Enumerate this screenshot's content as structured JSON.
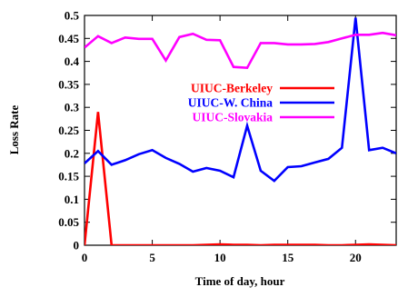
{
  "chart_data": {
    "type": "line",
    "title": "",
    "xlabel": "Time of day, hour",
    "ylabel": "Loss Rate",
    "xlim": [
      0,
      23
    ],
    "ylim": [
      0,
      0.5
    ],
    "xticks": [
      0,
      5,
      10,
      15,
      20
    ],
    "yticks": [
      0,
      0.05,
      0.1,
      0.15,
      0.2,
      0.25,
      0.3,
      0.35,
      0.4,
      0.45,
      0.5
    ],
    "grid": false,
    "legend_position": "upper-right",
    "series": [
      {
        "name": "UIUC-Berkeley",
        "color": "#ff0000",
        "x": [
          0,
          1,
          2,
          3,
          4,
          5,
          6,
          7,
          8,
          9,
          10,
          11,
          12,
          13,
          14,
          15,
          16,
          17,
          18,
          19,
          20,
          21,
          22,
          23
        ],
        "y": [
          0.0,
          0.29,
          0.0,
          0.0,
          0.0,
          0.0,
          0.0,
          0.0,
          0.0,
          0.001,
          0.002,
          0.001,
          0.001,
          0.0,
          0.001,
          0.001,
          0.001,
          0.001,
          0.0,
          0.0,
          0.001,
          0.002,
          0.001,
          0.0
        ]
      },
      {
        "name": "UIUC-W. China",
        "color": "#0000ff",
        "x": [
          0,
          1,
          2,
          3,
          4,
          5,
          6,
          7,
          8,
          9,
          10,
          11,
          12,
          13,
          14,
          15,
          16,
          17,
          18,
          19,
          20,
          21,
          22,
          23
        ],
        "y": [
          0.178,
          0.205,
          0.175,
          0.185,
          0.198,
          0.207,
          0.19,
          0.177,
          0.16,
          0.168,
          0.162,
          0.148,
          0.26,
          0.162,
          0.14,
          0.17,
          0.172,
          0.18,
          0.188,
          0.212,
          0.495,
          0.207,
          0.212,
          0.2
        ]
      },
      {
        "name": "UIUC-Slovakia",
        "color": "#ff00ff",
        "x": [
          0,
          1,
          2,
          3,
          4,
          5,
          6,
          7,
          8,
          9,
          10,
          11,
          12,
          13,
          14,
          15,
          16,
          17,
          18,
          19,
          20,
          21,
          22,
          23
        ],
        "y": [
          0.43,
          0.455,
          0.44,
          0.452,
          0.449,
          0.449,
          0.402,
          0.453,
          0.46,
          0.447,
          0.446,
          0.388,
          0.386,
          0.44,
          0.44,
          0.437,
          0.437,
          0.438,
          0.442,
          0.45,
          0.458,
          0.458,
          0.462,
          0.457
        ]
      }
    ]
  }
}
